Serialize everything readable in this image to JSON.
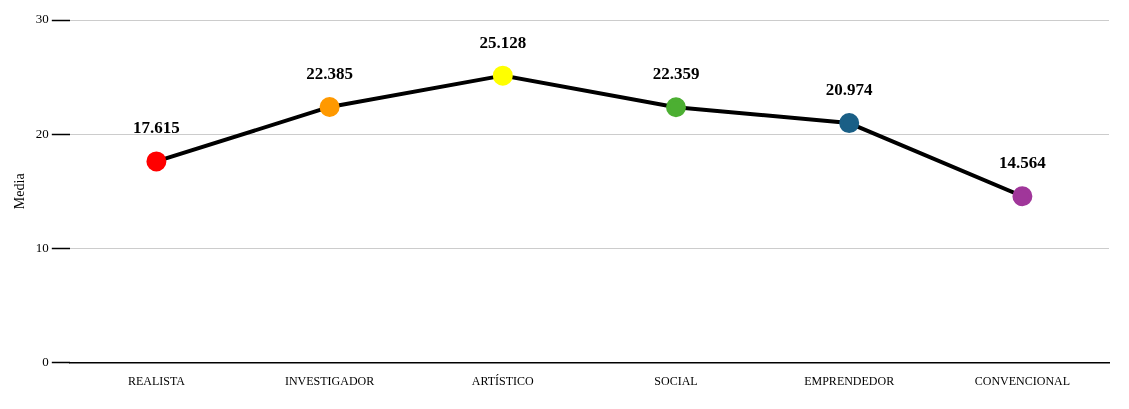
{
  "chart_data": {
    "type": "line",
    "ylabel": "Media",
    "categories": [
      "REALISTA",
      "INVESTIGADOR",
      "ARTÍSTICO",
      "SOCIAL",
      "EMPRENDEDOR",
      "CONVENCIONAL"
    ],
    "series": [
      {
        "color": "#000000",
        "colors": [
          "#ff0000",
          "#ff9900",
          "#ffff00",
          "#4caf32",
          "#1a5f86",
          "#a0369a"
        ],
        "values": [
          17.615,
          22.385,
          25.128,
          22.359,
          20.974,
          14.564
        ]
      }
    ],
    "ylim": [
      0,
      30
    ],
    "yticks": [
      0,
      10,
      20,
      30
    ],
    "grid": "y",
    "marker": "circle",
    "line_style": "solid",
    "data_labels": true,
    "legend": false
  }
}
